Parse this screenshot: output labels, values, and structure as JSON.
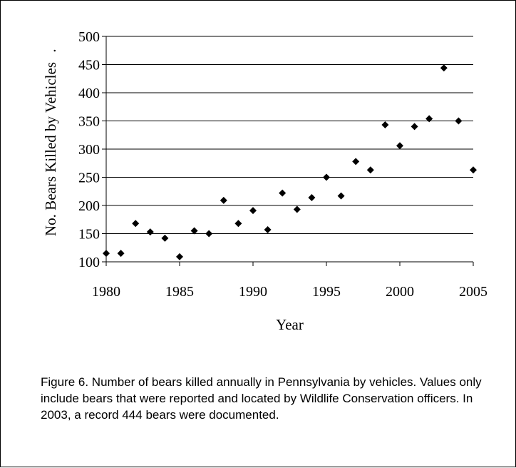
{
  "chart_data": {
    "type": "scatter",
    "title": "",
    "xlabel": "Year",
    "ylabel": "No. Bears Killed by Vehicles",
    "ylabel_suffix": ".",
    "xlim": [
      1980,
      2005
    ],
    "ylim": [
      100,
      500
    ],
    "xticks": [
      "1980",
      "1985",
      "1990",
      "1995",
      "2000",
      "2005"
    ],
    "yticks": [
      "100",
      "150",
      "200",
      "250",
      "300",
      "350",
      "400",
      "450",
      "500"
    ],
    "grid": "horizontal",
    "marker": "diamond",
    "marker_color": "#000000",
    "points": [
      {
        "x": 1980,
        "y": 115
      },
      {
        "x": 1981,
        "y": 115
      },
      {
        "x": 1982,
        "y": 168
      },
      {
        "x": 1983,
        "y": 153
      },
      {
        "x": 1984,
        "y": 142
      },
      {
        "x": 1985,
        "y": 109
      },
      {
        "x": 1986,
        "y": 155
      },
      {
        "x": 1987,
        "y": 150
      },
      {
        "x": 1988,
        "y": 209
      },
      {
        "x": 1989,
        "y": 168
      },
      {
        "x": 1990,
        "y": 191
      },
      {
        "x": 1991,
        "y": 157
      },
      {
        "x": 1992,
        "y": 222
      },
      {
        "x": 1993,
        "y": 193
      },
      {
        "x": 1994,
        "y": 214
      },
      {
        "x": 1995,
        "y": 250
      },
      {
        "x": 1996,
        "y": 217
      },
      {
        "x": 1997,
        "y": 278
      },
      {
        "x": 1998,
        "y": 263
      },
      {
        "x": 1999,
        "y": 343
      },
      {
        "x": 2000,
        "y": 306
      },
      {
        "x": 2001,
        "y": 340
      },
      {
        "x": 2002,
        "y": 354
      },
      {
        "x": 2003,
        "y": 444
      },
      {
        "x": 2004,
        "y": 350
      },
      {
        "x": 2005,
        "y": 263
      }
    ]
  },
  "caption": "Figure 6.  Number of bears killed annually in Pennsylvania by vehicles.  Values only include bears that were reported and located by Wildlife Conservation officers.  In 2003, a record 444 bears were documented."
}
